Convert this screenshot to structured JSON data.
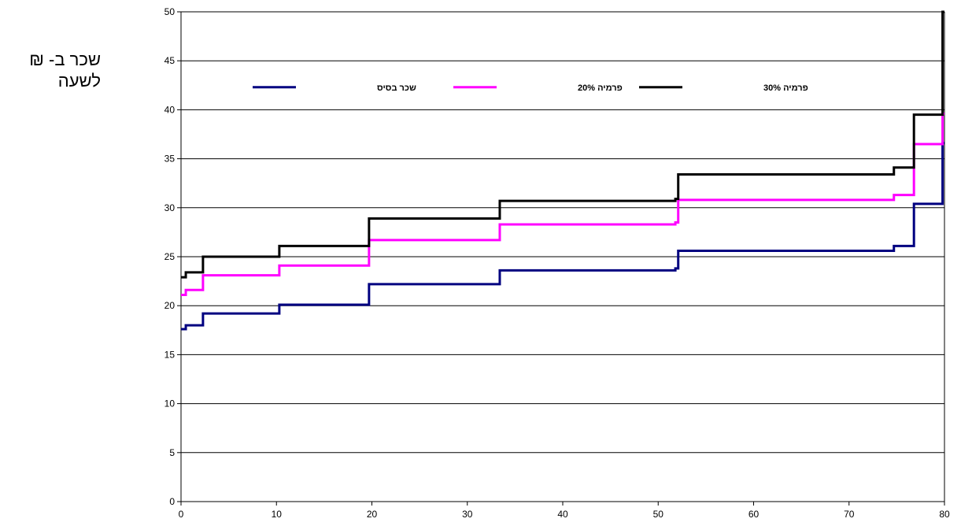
{
  "chart_data": {
    "type": "line",
    "ylabel_lines": [
      "שכר ב- ₪",
      "לשעה"
    ],
    "xlim": [
      0,
      80
    ],
    "ylim": [
      0,
      50
    ],
    "xticks": [
      0,
      10,
      20,
      30,
      40,
      50,
      60,
      70,
      80
    ],
    "yticks": [
      0,
      5,
      10,
      15,
      20,
      25,
      30,
      35,
      40,
      45,
      50
    ],
    "grid": "horizontal",
    "legend_position": "top",
    "series": [
      {
        "name": "שכר בסיס",
        "color": "#000080",
        "points": [
          [
            0,
            17.6
          ],
          [
            0.5,
            18
          ],
          [
            2.3,
            19.2
          ],
          [
            10.3,
            20.1
          ],
          [
            19.7,
            22.2
          ],
          [
            33.4,
            23.6
          ],
          [
            51.8,
            23.8
          ],
          [
            52.1,
            25.6
          ],
          [
            74.7,
            26.1
          ],
          [
            76.8,
            30.4
          ],
          [
            79.8,
            36.6
          ]
        ]
      },
      {
        "name": "פרמיה 20%",
        "color": "#ff00ff",
        "points": [
          [
            0,
            21.1
          ],
          [
            0.5,
            21.6
          ],
          [
            2.3,
            23.1
          ],
          [
            10.3,
            24.1
          ],
          [
            19.7,
            26.7
          ],
          [
            33.4,
            28.3
          ],
          [
            51.8,
            28.5
          ],
          [
            52.1,
            30.8
          ],
          [
            74.7,
            31.3
          ],
          [
            76.8,
            36.5
          ],
          [
            79.8,
            39.6
          ]
        ]
      },
      {
        "name": "פרמיה 30%",
        "color": "#000000",
        "points": [
          [
            0,
            22.9
          ],
          [
            0.5,
            23.4
          ],
          [
            2.3,
            25.0
          ],
          [
            10.3,
            26.1
          ],
          [
            19.7,
            28.9
          ],
          [
            33.4,
            30.7
          ],
          [
            51.8,
            30.9
          ],
          [
            52.1,
            33.4
          ],
          [
            74.7,
            34.1
          ],
          [
            76.8,
            39.5
          ],
          [
            79.8,
            50
          ]
        ]
      }
    ]
  }
}
